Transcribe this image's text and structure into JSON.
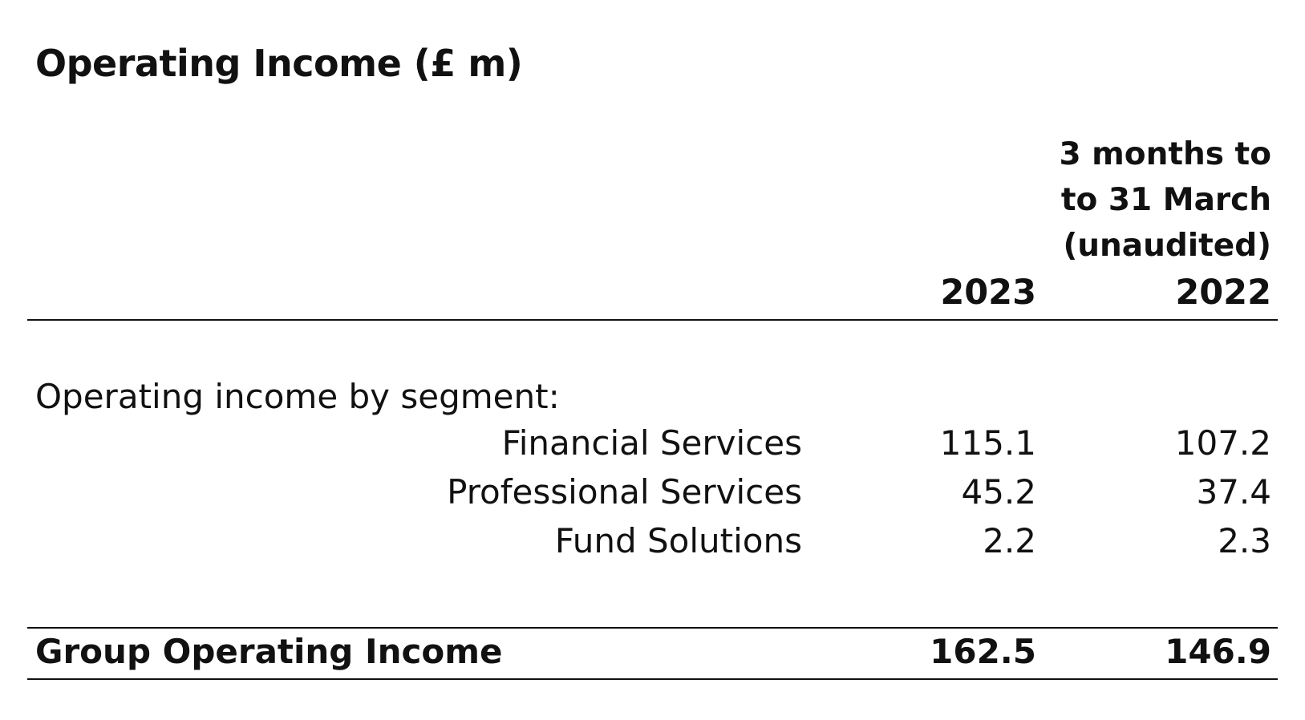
{
  "title": "Operating Income (£ m)",
  "period_header": {
    "line1": "3 months to",
    "line2": "to 31 March",
    "line3": "(unaudited)"
  },
  "columns": [
    "2023",
    "2022"
  ],
  "section_label": "Operating income by segment:",
  "segments": [
    {
      "name": "Financial Services",
      "values": [
        "115.1",
        "107.2"
      ]
    },
    {
      "name": "Professional Services",
      "values": [
        "45.2",
        "37.4"
      ]
    },
    {
      "name": "Fund Solutions",
      "values": [
        "2.2",
        "2.3"
      ]
    }
  ],
  "total": {
    "label": "Group Operating Income",
    "values": [
      "162.5",
      "146.9"
    ]
  }
}
